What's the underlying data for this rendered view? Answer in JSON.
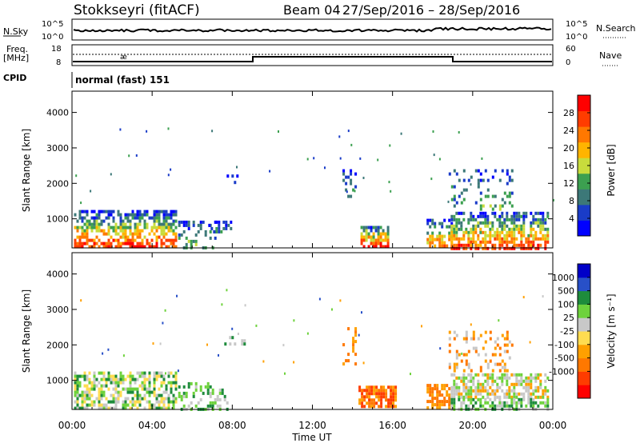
{
  "header": {
    "station": "Stokkseyri (fitACF)",
    "beam": "Beam 04",
    "dates": "27/Sep/2016 – 28/Sep/2016"
  },
  "top_panels": {
    "nsky_label": "N.Sky",
    "nsky_ticks": [
      "10^5",
      "10^0"
    ],
    "nsearch_label": "N.Search",
    "nsearch_ticks": [
      "10^5",
      "10^0"
    ],
    "freq_label": "Freq.",
    "freq_unit": "[MHz]",
    "freq_ticks": [
      "18",
      "8"
    ],
    "nave_label": "Nave",
    "nave_ticks": [
      "60",
      "0"
    ],
    "cpid_label": "CPID",
    "cpid_value": "normal (fast) 151"
  },
  "colors": {
    "power": [
      "#0000ff",
      "#1a3cc8",
      "#3c7878",
      "#3ca050",
      "#c8dc3c",
      "#ffb400",
      "#ff7800",
      "#ff3c00",
      "#ff0000"
    ],
    "velocity": [
      "#ff0000",
      "#ff3c00",
      "#ff7800",
      "#ffa000",
      "#ffdc50",
      "#c8c8c8",
      "#6ed23c",
      "#1e8c3c",
      "#2850c8",
      "#0000c8"
    ]
  },
  "chart_data": [
    {
      "type": "heatmap",
      "name": "power",
      "ylabel": "Slant Range [km]",
      "yticks": [
        "4000",
        "3000",
        "2000",
        "1000"
      ],
      "ylim": [
        180,
        4600
      ],
      "xlim_hours": [
        0,
        24
      ],
      "xticks": [
        "00:00",
        "04:00",
        "08:00",
        "12:00",
        "16:00",
        "20:00",
        "00:00"
      ],
      "colorbar_label": "Power [dB]",
      "colorbar_ticks": [
        "28",
        "24",
        "20",
        "16",
        "12",
        "8",
        "4"
      ],
      "clim": [
        0,
        32
      ],
      "regions": [
        {
          "h0": 0.1,
          "h1": 5.2,
          "r0": 180,
          "r1": 1250,
          "v0": 4,
          "v1": 30,
          "dens": 0.7
        },
        {
          "h0": 5.3,
          "h1": 7.2,
          "r0": 180,
          "r1": 950,
          "v0": 4,
          "v1": 14,
          "dens": 0.35
        },
        {
          "h0": 6.8,
          "h1": 7.9,
          "r0": 650,
          "r1": 950,
          "v0": 4,
          "v1": 10,
          "dens": 0.5
        },
        {
          "h0": 7.6,
          "h1": 8.6,
          "r0": 2050,
          "r1": 2250,
          "v0": 4,
          "v1": 8,
          "dens": 0.4
        },
        {
          "h0": 13.5,
          "h1": 14.2,
          "r0": 1600,
          "r1": 2400,
          "v0": 4,
          "v1": 14,
          "dens": 0.35
        },
        {
          "h0": 14.4,
          "h1": 15.8,
          "r0": 250,
          "r1": 800,
          "v0": 8,
          "v1": 30,
          "dens": 0.8
        },
        {
          "h0": 17.7,
          "h1": 19.0,
          "r0": 250,
          "r1": 1000,
          "v0": 4,
          "v1": 24,
          "dens": 0.65
        },
        {
          "h0": 18.9,
          "h1": 23.8,
          "r0": 200,
          "r1": 1200,
          "v0": 4,
          "v1": 28,
          "dens": 0.7
        },
        {
          "h0": 18.8,
          "h1": 22.0,
          "r0": 1300,
          "r1": 2400,
          "v0": 4,
          "v1": 12,
          "dens": 0.3
        }
      ]
    },
    {
      "type": "heatmap",
      "name": "velocity",
      "ylabel": "Slant Range [km]",
      "yticks": [
        "4000",
        "3000",
        "2000",
        "1000"
      ],
      "ylim": [
        180,
        4600
      ],
      "xlim_hours": [
        0,
        24
      ],
      "xticks": [
        "00:00",
        "04:00",
        "08:00",
        "12:00",
        "16:00",
        "20:00",
        "00:00"
      ],
      "xlabel": "Time UT",
      "colorbar_label": "Velocity [m s⁻¹]",
      "colorbar_ticks": [
        "1000",
        "500",
        "100",
        "25",
        "-25",
        "-100",
        "-500",
        "-1000"
      ],
      "regions": [
        {
          "h0": 0.1,
          "h1": 5.2,
          "r0": 180,
          "r1": 1250,
          "c": [
            5,
            6,
            7,
            4
          ],
          "dens": 0.65
        },
        {
          "h0": 5.3,
          "h1": 7.8,
          "r0": 200,
          "r1": 950,
          "c": [
            5,
            6,
            7
          ],
          "dens": 0.3
        },
        {
          "h0": 7.6,
          "h1": 8.6,
          "r0": 2050,
          "r1": 2250,
          "c": [
            5,
            7
          ],
          "dens": 0.35
        },
        {
          "h0": 13.5,
          "h1": 14.2,
          "r0": 1500,
          "r1": 2500,
          "c": [
            2,
            3
          ],
          "dens": 0.35
        },
        {
          "h0": 14.3,
          "h1": 16.2,
          "r0": 250,
          "r1": 850,
          "c": [
            2,
            3,
            1
          ],
          "dens": 0.8
        },
        {
          "h0": 17.7,
          "h1": 18.8,
          "r0": 250,
          "r1": 900,
          "c": [
            2,
            3
          ],
          "dens": 0.7
        },
        {
          "h0": 18.9,
          "h1": 23.8,
          "r0": 500,
          "r1": 1200,
          "c": [
            5,
            5,
            3,
            6
          ],
          "dens": 0.7
        },
        {
          "h0": 18.9,
          "h1": 23.8,
          "r0": 180,
          "r1": 500,
          "c": [
            7,
            6,
            5
          ],
          "dens": 0.6
        },
        {
          "h0": 18.8,
          "h1": 22.0,
          "r0": 1300,
          "r1": 2400,
          "c": [
            2,
            3,
            5
          ],
          "dens": 0.3
        }
      ]
    }
  ]
}
